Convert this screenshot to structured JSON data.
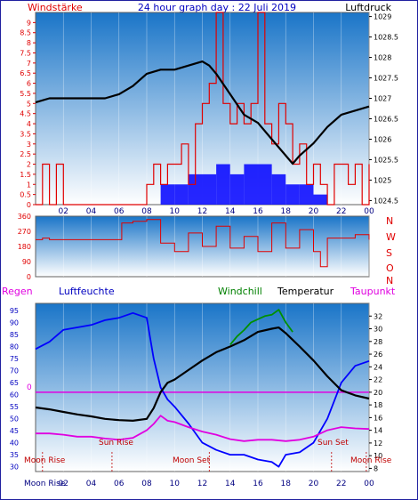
{
  "header": {
    "left_label": "Windstärke",
    "title": "24 hour graph day : 22 Juli 2019",
    "right_label": "Luftdruck"
  },
  "colors": {
    "red": "#e00000",
    "blue": "#0000ff",
    "black": "#000000",
    "green": "#009000",
    "magenta": "#e000e0",
    "navy": "#000080",
    "sky_top": "#1a75c8",
    "sky_bottom": "#ffffff"
  },
  "x_ticks": [
    "02",
    "04",
    "06",
    "08",
    "10",
    "12",
    "14",
    "16",
    "18",
    "20",
    "22",
    "00"
  ],
  "panel2": {
    "right_labels": [
      "N",
      "W",
      "S",
      "O",
      "N"
    ]
  },
  "panel3": {
    "labels": {
      "regen": "Regen",
      "luftfeuchte": "Luftfeuchte",
      "windchill": "Windchill",
      "temperatur": "Temperatur",
      "taupunkt": "Taupunkt"
    },
    "zero_label": "0",
    "annotations": {
      "moon_rise_left": "Moon Rise",
      "sun_rise": "Sun Rise",
      "moon_set": "Moon Set",
      "sun_set": "Sun Set",
      "moon_rise_right": "Moon Rise",
      "bottom_moon_rise": "Moon Rise"
    }
  },
  "chart_data": [
    {
      "type": "line",
      "name": "panel1",
      "x_unit": "hour of day",
      "xlim": [
        0,
        24
      ],
      "left_axis": {
        "label": "Windstärke",
        "ylim": [
          0,
          9.5
        ],
        "ticks": [
          0,
          0.5,
          1,
          1.5,
          2,
          2.5,
          3,
          3.5,
          4,
          4.5,
          5,
          5.5,
          6,
          6.5,
          7,
          7.5,
          8,
          8.5,
          9
        ],
        "tick_labels": [
          "0",
          "0.5",
          "1",
          "1.5",
          "2",
          "2.5",
          "3",
          "3.5",
          "4",
          "4.5",
          "5",
          "5.5",
          "6",
          "6.5",
          "7",
          "7.5",
          "8",
          "8.5",
          "9"
        ]
      },
      "right_axis": {
        "label": "Luftdruck",
        "ylim": [
          1024.4,
          1029.1
        ],
        "ticks": [
          1024.5,
          1025,
          1025.5,
          1026,
          1026.5,
          1027,
          1027.5,
          1028,
          1028.5,
          1029
        ],
        "tick_labels": [
          "1024.5",
          "1025",
          "1025.5",
          "1026",
          "1026.5",
          "1027",
          "1027.5",
          "1028",
          "1028.5",
          "1029"
        ]
      },
      "series": [
        {
          "name": "Luftdruck",
          "axis": "right",
          "x": [
            0,
            1,
            2,
            3,
            4,
            5,
            6,
            7,
            8,
            9,
            10,
            11,
            12,
            12.5,
            13,
            14,
            15,
            16,
            17,
            18,
            18.5,
            19,
            20,
            21,
            22,
            23,
            24
          ],
          "y": [
            1026.9,
            1027.0,
            1027.0,
            1027.0,
            1027.0,
            1027.0,
            1027.1,
            1027.3,
            1027.6,
            1027.7,
            1027.7,
            1027.8,
            1027.9,
            1027.8,
            1027.6,
            1027.1,
            1026.6,
            1026.4,
            1026.0,
            1025.6,
            1025.4,
            1025.6,
            1025.9,
            1026.3,
            1026.6,
            1026.7,
            1026.8
          ]
        },
        {
          "name": "Wind max",
          "axis": "left",
          "x": [
            0,
            0.5,
            1,
            1.5,
            2,
            3,
            4,
            5,
            6,
            7,
            8,
            8.5,
            9,
            9.5,
            10,
            10.5,
            11,
            11.5,
            12,
            12.5,
            13,
            13.5,
            14,
            14.5,
            15,
            15.5,
            16,
            16.5,
            17,
            17.5,
            18,
            18.5,
            19,
            19.5,
            20,
            20.5,
            21,
            21.5,
            22,
            22.5,
            23,
            23.5,
            24
          ],
          "y": [
            0,
            2,
            0,
            2,
            0,
            0,
            0,
            0,
            0,
            0,
            1,
            2,
            1,
            2,
            2,
            3,
            1,
            4,
            5,
            6,
            9.5,
            5,
            4,
            5,
            4,
            5,
            9.5,
            4,
            3,
            5,
            4,
            2,
            3,
            1,
            2,
            1,
            0,
            2,
            2,
            1,
            2,
            0,
            2
          ]
        },
        {
          "name": "Wind avg",
          "axis": "left",
          "x": [
            9,
            10,
            11,
            12,
            13,
            14,
            15,
            16,
            17,
            18,
            19,
            20
          ],
          "y": [
            1,
            1,
            1.5,
            1.5,
            2,
            1.5,
            2,
            2,
            1.5,
            1,
            1,
            0.5
          ]
        }
      ]
    },
    {
      "type": "line",
      "name": "panel2",
      "series_name": "Windrichtung",
      "xlim": [
        0,
        24
      ],
      "ylim": [
        0,
        360
      ],
      "ticks": [
        0,
        90,
        180,
        270,
        360
      ],
      "tick_labels": [
        "0",
        "90",
        "180",
        "270",
        "360"
      ],
      "x": [
        0,
        0.5,
        1,
        2,
        3,
        4,
        5,
        6,
        6.2,
        7,
        8,
        9,
        10,
        11,
        12,
        13,
        14,
        15,
        16,
        17,
        18,
        19,
        20,
        20.5,
        21,
        22,
        23,
        24
      ],
      "y": [
        220,
        230,
        220,
        220,
        220,
        220,
        220,
        220,
        320,
        330,
        340,
        200,
        150,
        260,
        180,
        300,
        170,
        240,
        150,
        320,
        170,
        280,
        150,
        60,
        230,
        230,
        250,
        220
      ]
    },
    {
      "type": "line",
      "name": "panel3",
      "xlim": [
        0,
        24
      ],
      "left_axis": {
        "label": "Luftfeuchte",
        "ylim": [
          28,
          98
        ],
        "ticks": [
          30,
          35,
          40,
          45,
          50,
          55,
          60,
          65,
          70,
          75,
          80,
          85,
          90,
          95
        ],
        "tick_labels": [
          "30",
          "35",
          "40",
          "45",
          "50",
          "55",
          "60",
          "65",
          "70",
          "75",
          "80",
          "85",
          "90",
          "95"
        ]
      },
      "right_axis": {
        "label": "Temperatur",
        "ylim": [
          7.5,
          34
        ],
        "ticks": [
          8,
          10,
          12,
          14,
          16,
          18,
          20,
          22,
          24,
          26,
          28,
          30,
          32
        ],
        "tick_labels": [
          "8",
          "10",
          "12",
          "14",
          "16",
          "18",
          "20",
          "22",
          "24",
          "26",
          "28",
          "30",
          "32"
        ]
      },
      "series": [
        {
          "name": "Luftfeuchte",
          "axis": "left",
          "x": [
            0,
            1,
            2,
            3,
            4,
            5,
            6,
            7,
            8,
            8.5,
            9,
            9.5,
            10,
            11,
            12,
            13,
            14,
            15,
            16,
            17,
            17.5,
            18,
            19,
            20,
            21,
            22,
            23,
            24
          ],
          "y": [
            79,
            82,
            87,
            88,
            89,
            91,
            92,
            94,
            92,
            75,
            63,
            58,
            55,
            48,
            40,
            37,
            35,
            35,
            33,
            32,
            30,
            35,
            36,
            40,
            50,
            65,
            72,
            74
          ]
        },
        {
          "name": "Temperatur",
          "axis": "right",
          "x": [
            0,
            1,
            2,
            3,
            4,
            5,
            6,
            7,
            8,
            8.5,
            9,
            9.5,
            10,
            11,
            12,
            13,
            14,
            15,
            16,
            17,
            17.5,
            18,
            19,
            20,
            21,
            22,
            23,
            24
          ],
          "y": [
            17.6,
            17.3,
            16.9,
            16.5,
            16.2,
            15.8,
            15.6,
            15.5,
            15.8,
            17.5,
            20.0,
            21.5,
            22.0,
            23.5,
            25.0,
            26.3,
            27.2,
            28.2,
            29.5,
            30.0,
            30.2,
            29.3,
            27.2,
            25.0,
            22.5,
            20.3,
            19.5,
            19.0
          ]
        },
        {
          "name": "Windchill",
          "axis": "right",
          "x": [
            14,
            14.5,
            15,
            15.5,
            16,
            16.5,
            17,
            17.5,
            18,
            18.5
          ],
          "y": [
            27.5,
            28.8,
            29.8,
            31.0,
            31.5,
            32.0,
            32.2,
            33.0,
            31.0,
            29.5
          ]
        },
        {
          "name": "Taupunkt",
          "axis": "right",
          "x": [
            0,
            1,
            2,
            3,
            4,
            5,
            6,
            7,
            8,
            8.5,
            9,
            9.5,
            10,
            11,
            12,
            13,
            14,
            15,
            16,
            17,
            18,
            19,
            20,
            21,
            22,
            23,
            24
          ],
          "y": [
            13.5,
            13.5,
            13.3,
            13.0,
            13.0,
            12.7,
            12.5,
            12.8,
            14.0,
            15.0,
            16.3,
            15.5,
            15.3,
            14.5,
            13.8,
            13.3,
            12.6,
            12.3,
            12.5,
            12.5,
            12.3,
            12.5,
            13.0,
            14.0,
            14.5,
            14.3,
            14.2
          ]
        },
        {
          "name": "Regen",
          "axis": "left",
          "x": [
            0,
            24
          ],
          "y": [
            61,
            61
          ]
        }
      ],
      "events": [
        {
          "name": "Moon Rise",
          "hour": 0.5
        },
        {
          "name": "Sun Rise",
          "hour": 5.5
        },
        {
          "name": "Moon Set",
          "hour": 12.5
        },
        {
          "name": "Sun Set",
          "hour": 21.3
        },
        {
          "name": "Moon Rise",
          "hour": 23.8
        }
      ]
    }
  ]
}
